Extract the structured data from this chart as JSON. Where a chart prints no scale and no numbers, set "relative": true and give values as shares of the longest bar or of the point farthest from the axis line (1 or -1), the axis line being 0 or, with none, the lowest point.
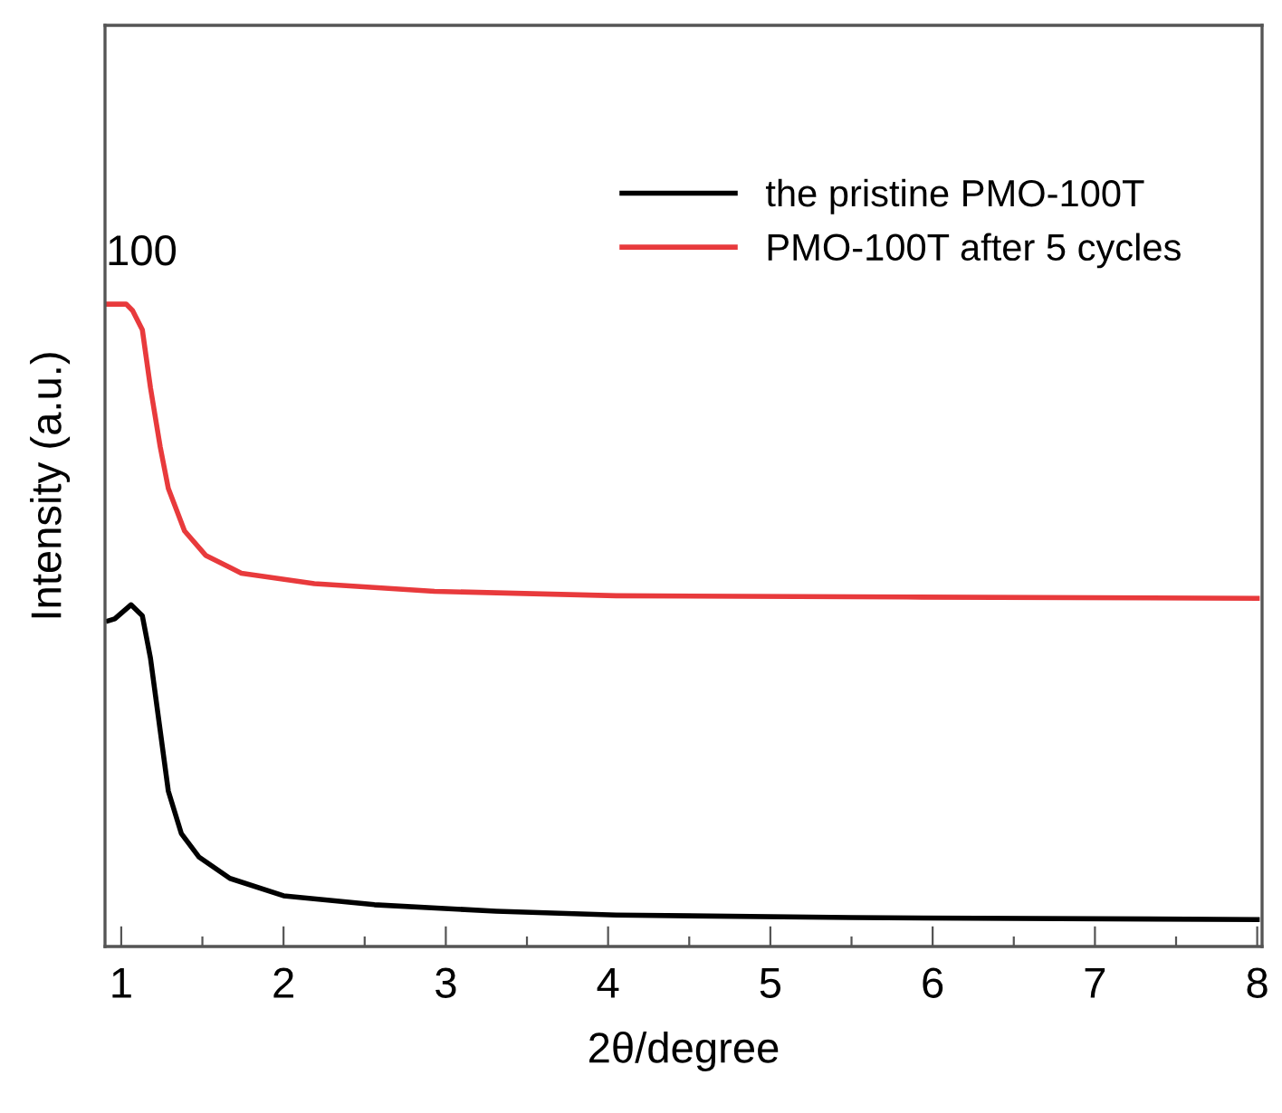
{
  "chart_data": {
    "type": "line",
    "xlabel": "2θ/degree",
    "ylabel": "Intensity (a.u.)",
    "relative": true,
    "xlim": [
      0.9,
      8.03
    ],
    "xticks": [
      1,
      {
        "value": 1.5,
        "label": null
      },
      2,
      {
        "value": 2.5,
        "label": null
      },
      3,
      {
        "value": 3.5,
        "label": null
      },
      4,
      {
        "value": 4.5,
        "label": null
      },
      5,
      {
        "value": 5.5,
        "label": null
      },
      6,
      {
        "value": 6.5,
        "label": null
      },
      7,
      {
        "value": 7.5,
        "label": null
      },
      8
    ],
    "tick_labels": "x",
    "grid": false,
    "legend": "top right",
    "marker": "none",
    "line_style": "solid",
    "annotations": [
      {
        "text": "100",
        "x": 1.03,
        "y": 1.0
      }
    ],
    "series": [
      {
        "name": "the pristine PMO-100T",
        "color": "#000000",
        "x": [
          0.92,
          0.96,
          1.06,
          1.13,
          1.18,
          1.24,
          1.29,
          1.37,
          1.48,
          1.67,
          2.0,
          2.56,
          3.31,
          4.05,
          5.5,
          8.0
        ],
        "values": [
          0.507,
          0.51,
          0.532,
          0.515,
          0.449,
          0.336,
          0.242,
          0.176,
          0.139,
          0.106,
          0.079,
          0.065,
          0.055,
          0.049,
          0.045,
          0.042
        ]
      },
      {
        "name": "PMO-100T after 5 cycles",
        "color": "#e83a3c",
        "x": [
          0.92,
          1.03,
          1.07,
          1.13,
          1.18,
          1.24,
          1.29,
          1.39,
          1.52,
          1.74,
          2.19,
          2.93,
          4.05,
          5.84,
          8.0
        ],
        "values": [
          1.0,
          1.0,
          0.99,
          0.96,
          0.87,
          0.778,
          0.713,
          0.647,
          0.609,
          0.581,
          0.565,
          0.553,
          0.546,
          0.544,
          0.542
        ]
      }
    ]
  }
}
